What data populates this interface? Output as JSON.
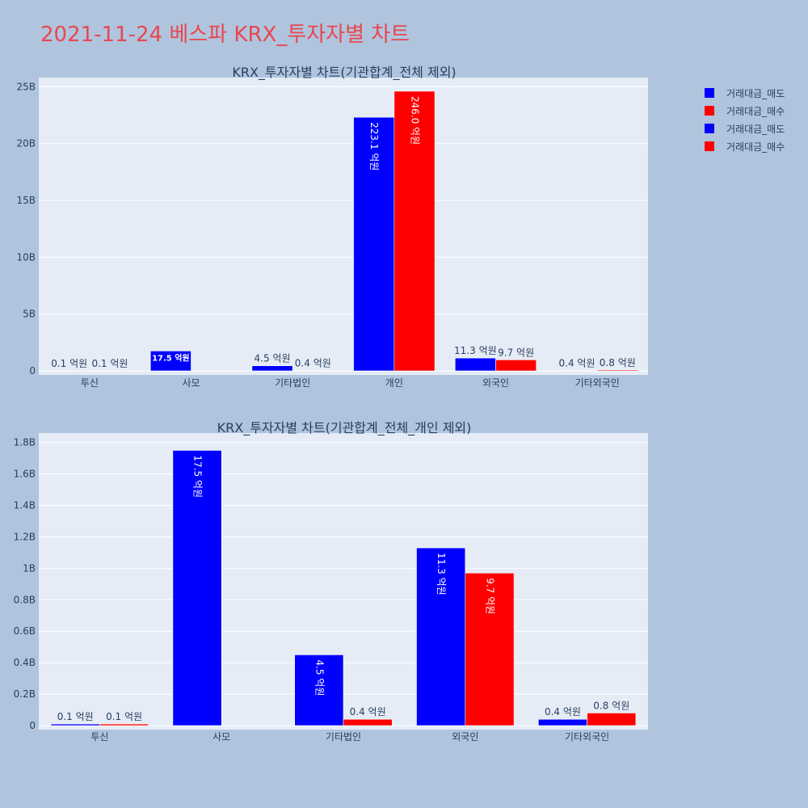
{
  "page_title": "2021-11-24 베스파 KRX_투자자별 차트",
  "legend": [
    {
      "label": "거래대금_매도",
      "color": "#0000ff"
    },
    {
      "label": "거래대금_매수",
      "color": "#ff0000"
    },
    {
      "label": "거래대금_매도",
      "color": "#0000ff"
    },
    {
      "label": "거래대금_매수",
      "color": "#ff0000"
    }
  ],
  "colors": {
    "sell": "#0000ff",
    "buy": "#ff0000",
    "plot_bg": "#e5ecf6",
    "page_bg": "#b0c4de",
    "text": "#2a3f5f",
    "grid": "#ffffff"
  },
  "chart_data": [
    {
      "type": "bar",
      "title": "KRX_투자자별 차트(기관합계_전체 제외)",
      "categories": [
        "투신",
        "사모",
        "기타법인",
        "개인",
        "외국인",
        "기타외국인"
      ],
      "series": [
        {
          "name": "거래대금_매도",
          "values": [
            0.01,
            1.75,
            0.45,
            22.31,
            1.13,
            0.04
          ],
          "labels": [
            "0.1 억원",
            "17.5 억원",
            "4.5 억원",
            "223.1 억원",
            "11.3 억원",
            "0.4 억원"
          ]
        },
        {
          "name": "거래대금_매수",
          "values": [
            0.01,
            0,
            0.04,
            24.6,
            0.97,
            0.08
          ],
          "labels": [
            "0.1 억원",
            "",
            "0.4 억원",
            "246.0 억원",
            "9.7 억원",
            "0.8 억원"
          ]
        }
      ],
      "yticks": [
        "0",
        "5B",
        "10B",
        "15B",
        "20B",
        "25B"
      ],
      "ytick_values": [
        0,
        5,
        10,
        15,
        20,
        25
      ],
      "ylim": [
        0,
        25.8
      ],
      "grid": true
    },
    {
      "type": "bar",
      "title": "KRX_투자자별 차트(기관합계_전체_개인 제외)",
      "categories": [
        "투신",
        "사모",
        "기타법인",
        "외국인",
        "기타외국인"
      ],
      "series": [
        {
          "name": "거래대금_매도",
          "values": [
            0.01,
            1.75,
            0.45,
            1.13,
            0.04
          ],
          "labels": [
            "0.1 억원",
            "17.5 억원",
            "4.5 억원",
            "11.3 억원",
            "0.4 억원"
          ]
        },
        {
          "name": "거래대금_매수",
          "values": [
            0.01,
            0,
            0.04,
            0.97,
            0.08
          ],
          "labels": [
            "0.1 억원",
            "",
            "0.4 억원",
            "9.7 억원",
            "0.8 억원"
          ]
        }
      ],
      "yticks": [
        "0",
        "0.2B",
        "0.4B",
        "0.6B",
        "0.8B",
        "1B",
        "1.2B",
        "1.4B",
        "1.6B",
        "1.8B"
      ],
      "ytick_values": [
        0,
        0.2,
        0.4,
        0.6,
        0.8,
        1.0,
        1.2,
        1.4,
        1.6,
        1.8
      ],
      "ylim": [
        0,
        1.86
      ],
      "grid": true
    }
  ]
}
